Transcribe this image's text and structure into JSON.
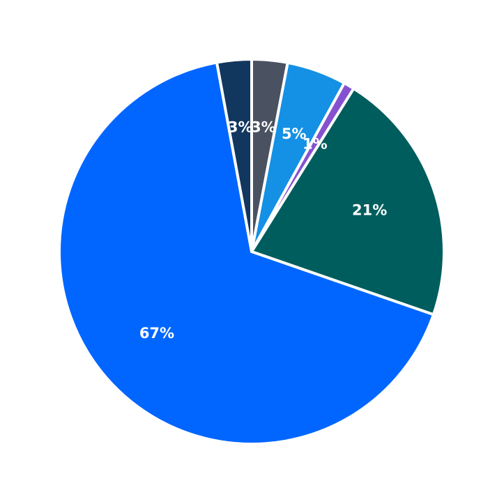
{
  "chart_data": {
    "type": "pie",
    "start": "top",
    "direction": "clockwise",
    "slices": [
      {
        "label": "3%",
        "value": 3.0,
        "color": "#4a5160"
      },
      {
        "label": "5%",
        "value": 5.0,
        "color": "#1490e4"
      },
      {
        "label": "1%",
        "value": 0.9,
        "color": "#8452cf"
      },
      {
        "label": "21%",
        "value": 21.4,
        "color": "#005d5d"
      },
      {
        "label": "67%",
        "value": 66.8,
        "color": "#0066ff"
      },
      {
        "label": "3%",
        "value": 2.9,
        "color": "#12375f"
      }
    ]
  }
}
